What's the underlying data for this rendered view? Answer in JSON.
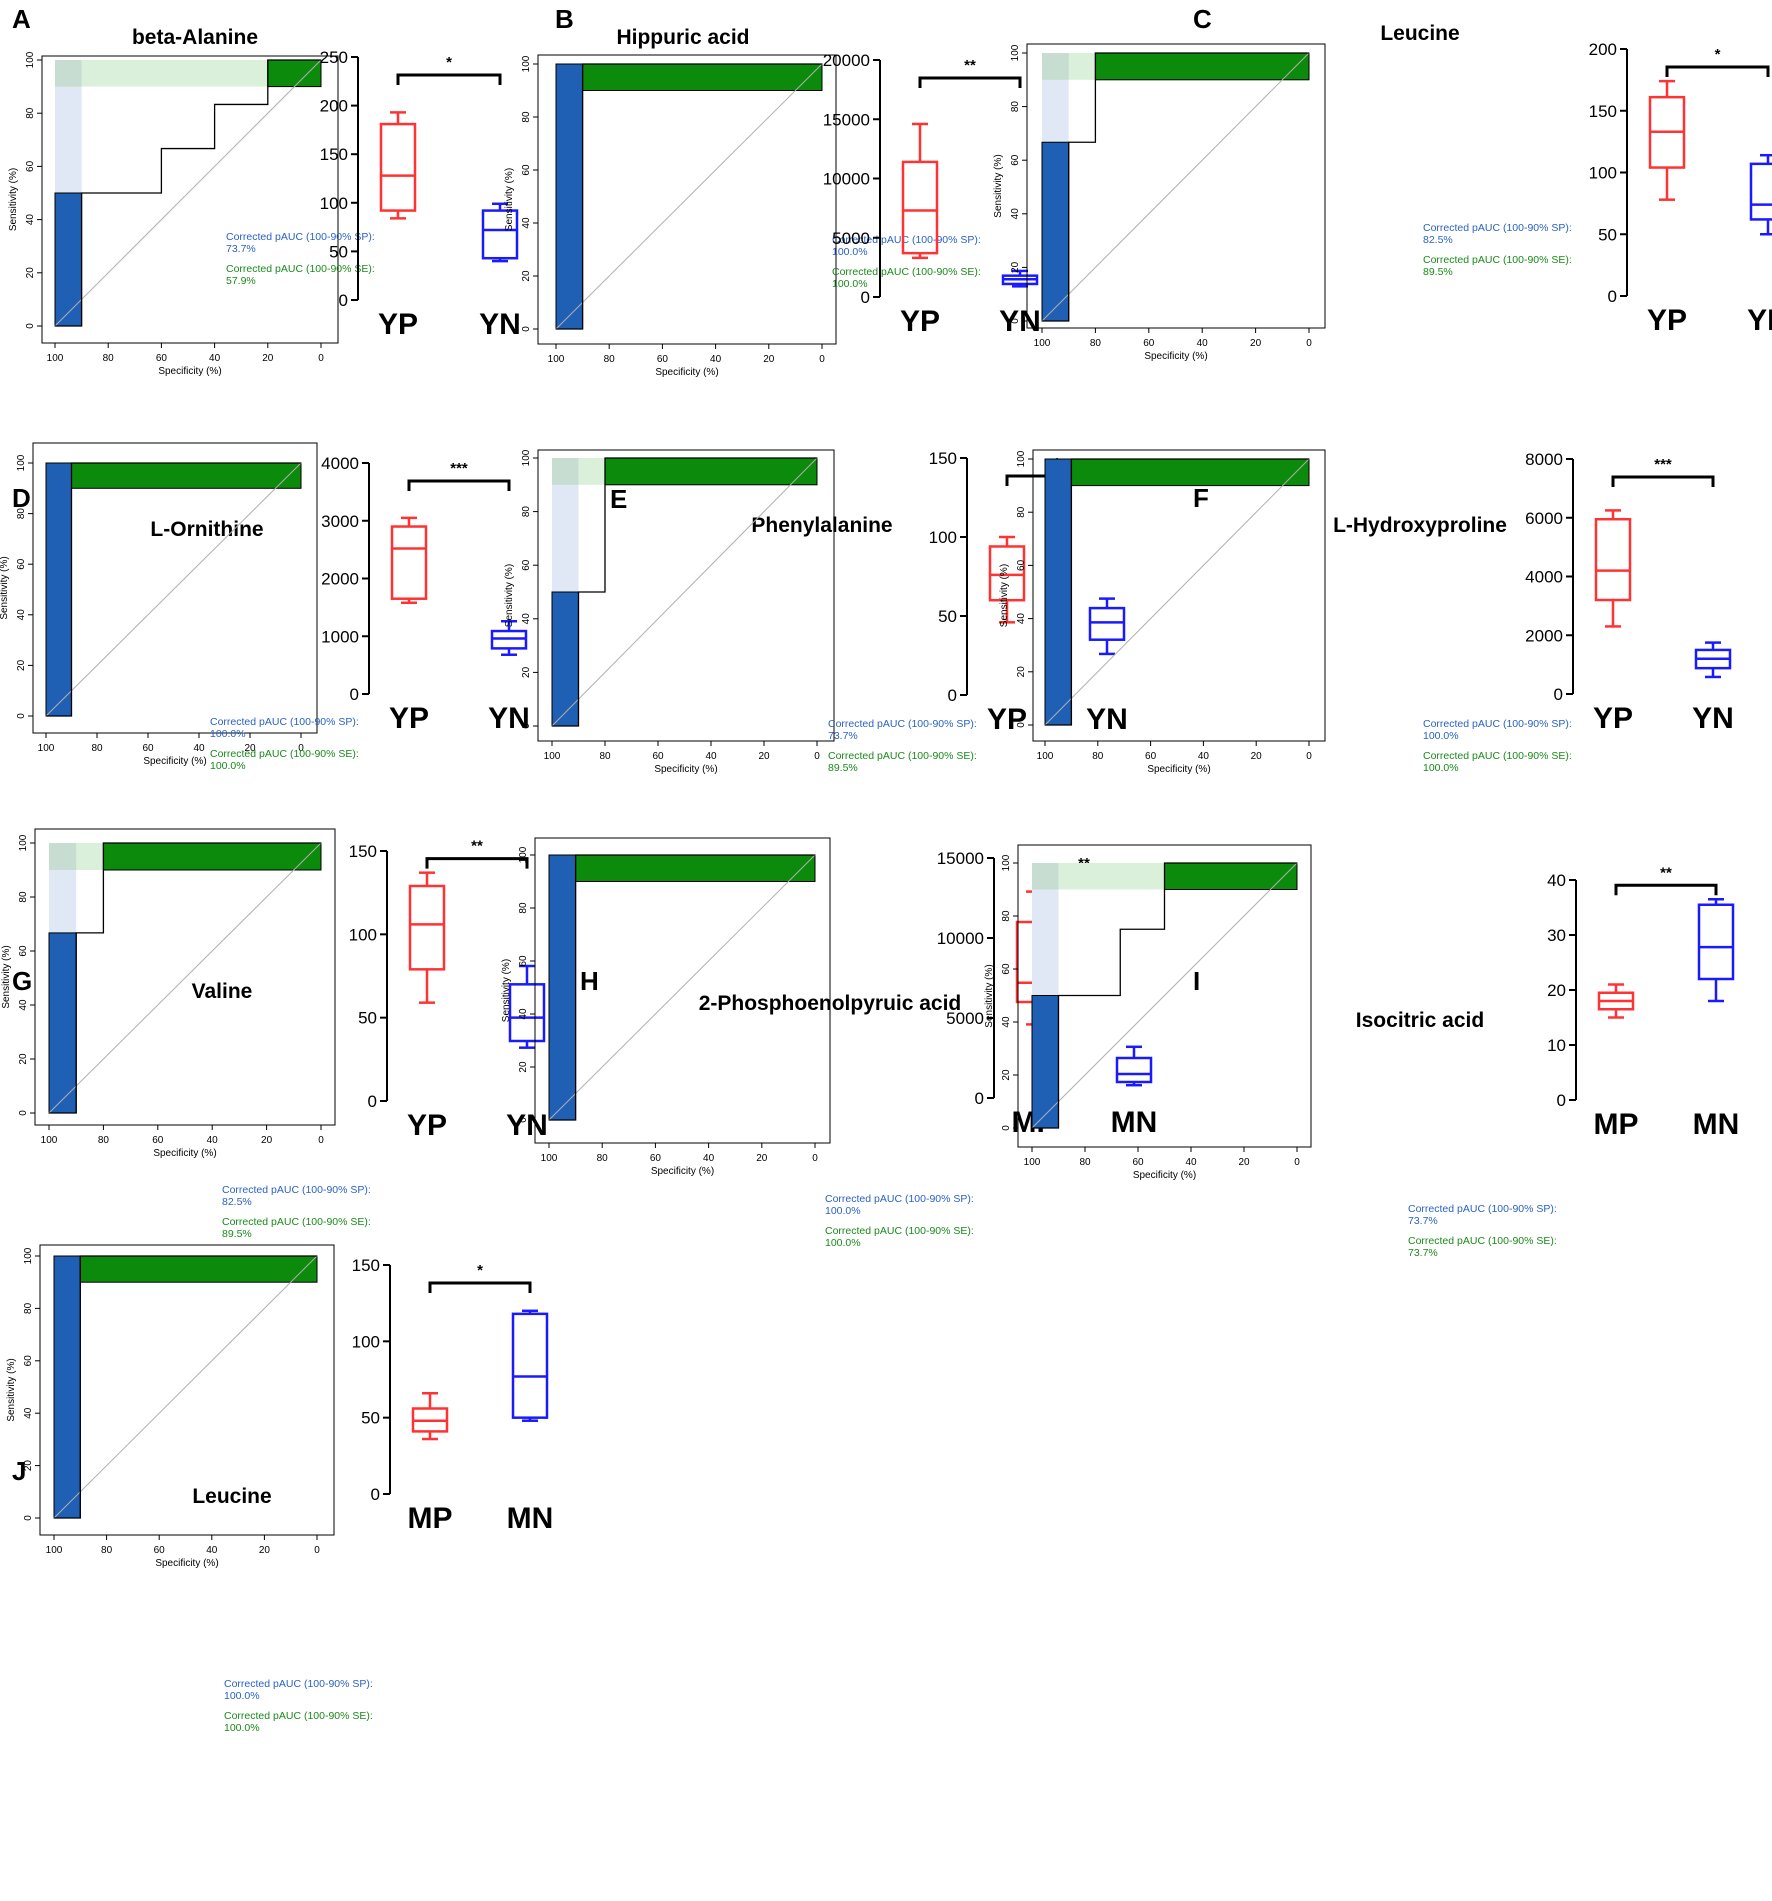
{
  "figure": {
    "roc_xlabel": "Specificity (%)",
    "roc_ylabel": "Sensitivity (%)",
    "roc_ticks": [
      "100",
      "80",
      "60",
      "40",
      "20",
      "0"
    ],
    "sp_label": "Corrected pAUC (100-90% SP):",
    "se_label": "Corrected pAUC (100-90% SE):",
    "colors": {
      "sp_fill": "#1f5fb4",
      "sp_light": "#dfe8f4",
      "se_fill": "#0b8a0b",
      "se_light": "#dbf0db",
      "corner": "#c7ddd2",
      "sp_text": "#2a62c4",
      "se_text": "#1a8a1a",
      "group1": "#ff3333",
      "group2": "#1a1aff"
    }
  },
  "chart_data": [
    {
      "panel": "A",
      "title": "beta-Alanine",
      "type": "roc+boxplot",
      "roc": {
        "specificity": [
          100,
          90,
          90,
          60,
          60,
          40,
          40,
          20,
          20,
          0
        ],
        "sensitivity": [
          0,
          0,
          50,
          50,
          66.7,
          66.7,
          83.3,
          83.3,
          100,
          100
        ],
        "corrected_pauc_sp": "73.7%",
        "corrected_pauc_se": "57.9%"
      },
      "box": {
        "groups": [
          "YP",
          "YN"
        ],
        "yticks": [
          0,
          50,
          100,
          150,
          200,
          250
        ],
        "ylim": [
          0,
          250
        ],
        "stats": [
          [
            84,
            92,
            128,
            181,
            193
          ],
          [
            40,
            43,
            72,
            92,
            99
          ]
        ],
        "significance": "*"
      }
    },
    {
      "panel": "B",
      "title": "Hippuric acid",
      "type": "roc+boxplot",
      "roc": {
        "specificity": [
          100,
          90,
          90,
          0
        ],
        "sensitivity": [
          0,
          0,
          100,
          100
        ],
        "corrected_pauc_sp": "100.0%",
        "corrected_pauc_se": "100.0%"
      },
      "box": {
        "groups": [
          "YP",
          "YN"
        ],
        "yticks": [
          0,
          5000,
          10000,
          15000,
          20000
        ],
        "ylim": [
          0,
          20000
        ],
        "stats": [
          [
            3300,
            3700,
            7300,
            11400,
            14600
          ],
          [
            900,
            1100,
            1500,
            1800,
            2200
          ]
        ],
        "significance": "**"
      }
    },
    {
      "panel": "C",
      "title": "Leucine",
      "type": "roc+boxplot",
      "roc": {
        "specificity": [
          100,
          90,
          90,
          80,
          80,
          0
        ],
        "sensitivity": [
          0,
          0,
          66.7,
          66.7,
          100,
          100
        ],
        "corrected_pauc_sp": "82.5%",
        "corrected_pauc_se": "89.5%"
      },
      "box": {
        "groups": [
          "YP",
          "YN"
        ],
        "yticks": [
          0,
          50,
          100,
          150,
          200
        ],
        "ylim": [
          0,
          200
        ],
        "stats": [
          [
            78,
            104,
            133,
            161,
            174
          ],
          [
            50,
            62,
            74,
            107,
            114
          ]
        ],
        "significance": "*"
      }
    },
    {
      "panel": "D",
      "title": "L-Ornithine",
      "type": "roc+boxplot",
      "roc": {
        "specificity": [
          100,
          90,
          90,
          0
        ],
        "sensitivity": [
          0,
          0,
          100,
          100
        ],
        "corrected_pauc_sp": "100.0%",
        "corrected_pauc_se": "100.0%"
      },
      "box": {
        "groups": [
          "YP",
          "YN"
        ],
        "yticks": [
          0,
          1000,
          2000,
          3000,
          4000
        ],
        "ylim": [
          0,
          4000
        ],
        "stats": [
          [
            1580,
            1650,
            2520,
            2900,
            3050
          ],
          [
            680,
            790,
            960,
            1090,
            1260
          ]
        ],
        "significance": "***"
      }
    },
    {
      "panel": "E",
      "title": "Phenylalanine",
      "type": "roc+boxplot",
      "roc": {
        "specificity": [
          100,
          90,
          90,
          80,
          80,
          0
        ],
        "sensitivity": [
          0,
          0,
          50,
          50,
          100,
          100
        ],
        "corrected_pauc_sp": "73.7%",
        "corrected_pauc_se": "89.5%"
      },
      "box": {
        "groups": [
          "YP",
          "YN"
        ],
        "yticks": [
          0,
          50,
          100,
          150
        ],
        "ylim": [
          0,
          150
        ],
        "stats": [
          [
            46,
            60,
            76,
            94,
            100
          ],
          [
            26,
            35,
            46,
            55,
            61
          ]
        ],
        "significance": "*"
      }
    },
    {
      "panel": "F",
      "title": "L-Hydroxyproline",
      "type": "roc+boxplot",
      "roc": {
        "specificity": [
          100,
          90,
          90,
          0
        ],
        "sensitivity": [
          0,
          0,
          100,
          100
        ],
        "corrected_pauc_sp": "100.0%",
        "corrected_pauc_se": "100.0%"
      },
      "box": {
        "groups": [
          "YP",
          "YN"
        ],
        "yticks": [
          0,
          2000,
          4000,
          6000,
          8000
        ],
        "ylim": [
          0,
          8000
        ],
        "stats": [
          [
            2300,
            3200,
            4200,
            5950,
            6250
          ],
          [
            580,
            880,
            1200,
            1500,
            1750
          ]
        ],
        "significance": "***"
      }
    },
    {
      "panel": "G",
      "title": "Valine",
      "type": "roc+boxplot",
      "roc": {
        "specificity": [
          100,
          90,
          90,
          80,
          80,
          0
        ],
        "sensitivity": [
          0,
          0,
          66.7,
          66.7,
          100,
          100
        ],
        "corrected_pauc_sp": "82.5%",
        "corrected_pauc_se": "89.5%"
      },
      "box": {
        "groups": [
          "YP",
          "YN"
        ],
        "yticks": [
          0,
          50,
          100,
          150
        ],
        "ylim": [
          0,
          150
        ],
        "stats": [
          [
            59,
            79,
            106,
            129,
            137
          ],
          [
            32,
            36,
            50,
            70,
            81
          ]
        ],
        "significance": "**"
      }
    },
    {
      "panel": "H",
      "title": "2-Phosphoenolpyruic acid",
      "type": "roc+boxplot",
      "roc": {
        "specificity": [
          100,
          90,
          90,
          0
        ],
        "sensitivity": [
          0,
          0,
          100,
          100
        ],
        "corrected_pauc_sp": "100.0%",
        "corrected_pauc_se": "100.0%"
      },
      "box": {
        "groups": [
          "MP",
          "MN"
        ],
        "yticks": [
          0,
          5000,
          10000,
          15000
        ],
        "ylim": [
          0,
          15000
        ],
        "stats": [
          [
            4600,
            6000,
            7200,
            11000,
            12900
          ],
          [
            800,
            1000,
            1500,
            2500,
            3200
          ]
        ],
        "significance": "**"
      }
    },
    {
      "panel": "I",
      "title": "Isocitric acid",
      "type": "roc+boxplot",
      "roc": {
        "specificity": [
          100,
          90,
          90,
          66.7,
          66.7,
          50,
          50,
          0
        ],
        "sensitivity": [
          0,
          0,
          50,
          50,
          75,
          75,
          100,
          100
        ],
        "corrected_pauc_sp": "73.7%",
        "corrected_pauc_se": "73.7%"
      },
      "box": {
        "groups": [
          "MP",
          "MN"
        ],
        "yticks": [
          0,
          10,
          20,
          30,
          40
        ],
        "ylim": [
          0,
          40
        ],
        "stats": [
          [
            15,
            16.5,
            18,
            19.5,
            21
          ],
          [
            18,
            22,
            27.8,
            35.5,
            36.5
          ]
        ],
        "significance": "**"
      }
    },
    {
      "panel": "J",
      "title": "Leucine",
      "type": "roc+boxplot",
      "roc": {
        "specificity": [
          100,
          90,
          90,
          0
        ],
        "sensitivity": [
          0,
          0,
          100,
          100
        ],
        "corrected_pauc_sp": "100.0%",
        "corrected_pauc_se": "100.0%"
      },
      "box": {
        "groups": [
          "MP",
          "MN"
        ],
        "yticks": [
          0,
          50,
          100,
          150
        ],
        "ylim": [
          0,
          150
        ],
        "stats": [
          [
            36,
            41,
            48,
            56,
            66
          ],
          [
            48,
            50,
            77,
            118,
            120
          ]
        ],
        "significance": "*"
      }
    }
  ]
}
